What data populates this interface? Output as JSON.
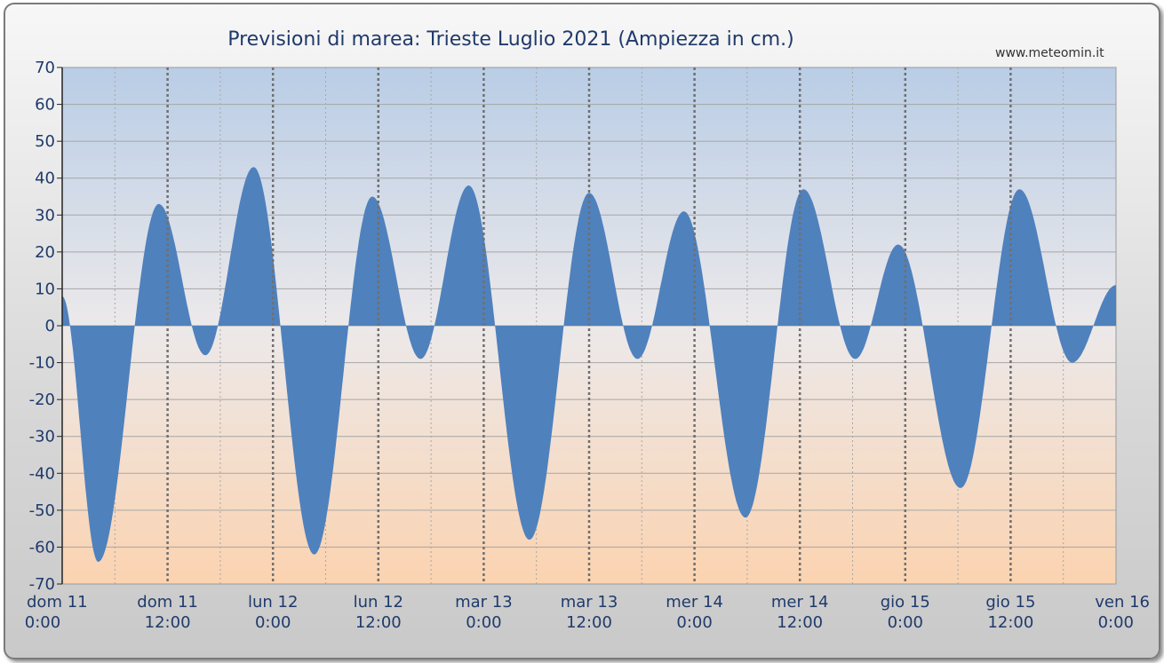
{
  "chart_data": {
    "type": "area",
    "title": "Previsioni di marea: Trieste Luglio 2021 (Ampiezza in cm.)",
    "source": "www.meteomin.it",
    "ylim": [
      -70,
      70
    ],
    "ytick_labels": [
      "70",
      "60",
      "50",
      "40",
      "30",
      "20",
      "10",
      "0",
      "-10",
      "-20",
      "-30",
      "-40",
      "-50",
      "-60",
      "-70"
    ],
    "xlim_hours": [
      0,
      120
    ],
    "x_ticks": [
      {
        "line1": "dom   11",
        "line2": "0:00"
      },
      {
        "line1": "dom   11",
        "line2": "12:00"
      },
      {
        "line1": "lun   12",
        "line2": "0:00"
      },
      {
        "line1": "lun   12",
        "line2": "12:00"
      },
      {
        "line1": "mar   13",
        "line2": "0:00"
      },
      {
        "line1": "mar   13",
        "line2": "12:00"
      },
      {
        "line1": "mer   14",
        "line2": "0:00"
      },
      {
        "line1": "mer   14",
        "line2": "12:00"
      },
      {
        "line1": "gio   15",
        "line2": "0:00"
      },
      {
        "line1": "gio   15",
        "line2": "12:00"
      },
      {
        "line1": "ven   16",
        "line2": "0:00"
      }
    ],
    "series": [
      {
        "color": "#4f81bd",
        "extrema": [
          {
            "x_hours": 0.0,
            "y": 8
          },
          {
            "x_hours": 4.1,
            "y": -64
          },
          {
            "x_hours": 11.0,
            "y": 33
          },
          {
            "x_hours": 16.3,
            "y": -8
          },
          {
            "x_hours": 21.8,
            "y": 43
          },
          {
            "x_hours": 28.7,
            "y": -62
          },
          {
            "x_hours": 35.3,
            "y": 35
          },
          {
            "x_hours": 40.8,
            "y": -9
          },
          {
            "x_hours": 46.3,
            "y": 38
          },
          {
            "x_hours": 53.2,
            "y": -58
          },
          {
            "x_hours": 60.0,
            "y": 36
          },
          {
            "x_hours": 65.5,
            "y": -9
          },
          {
            "x_hours": 70.8,
            "y": 31
          },
          {
            "x_hours": 77.8,
            "y": -52
          },
          {
            "x_hours": 84.4,
            "y": 37
          },
          {
            "x_hours": 90.3,
            "y": -9
          },
          {
            "x_hours": 95.2,
            "y": 22
          },
          {
            "x_hours": 102.3,
            "y": -44
          },
          {
            "x_hours": 109.0,
            "y": 37
          },
          {
            "x_hours": 115.0,
            "y": -10
          },
          {
            "x_hours": 120.0,
            "y": 11
          }
        ]
      }
    ]
  }
}
